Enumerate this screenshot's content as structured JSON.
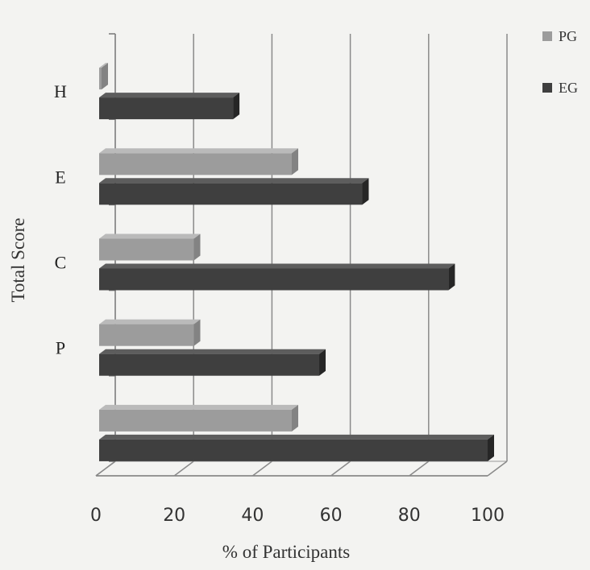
{
  "chart_data": {
    "type": "bar",
    "orientation": "horizontal",
    "style": "3d",
    "categories": [
      "",
      "P",
      "C",
      "E",
      "H"
    ],
    "series": [
      {
        "name": "PG",
        "values": [
          50,
          25,
          25,
          50,
          0
        ],
        "color": "#9c9c9c"
      },
      {
        "name": "EG",
        "values": [
          100,
          57,
          90,
          68,
          35
        ],
        "color": "#3f3f3f"
      }
    ],
    "xlabel": "% of Participants",
    "ylabel": "Total Score",
    "xlim": [
      0,
      100
    ],
    "xticks": [
      "0",
      "20",
      "40",
      "60",
      "80",
      "100"
    ],
    "grid": true,
    "legend": "top-right"
  }
}
